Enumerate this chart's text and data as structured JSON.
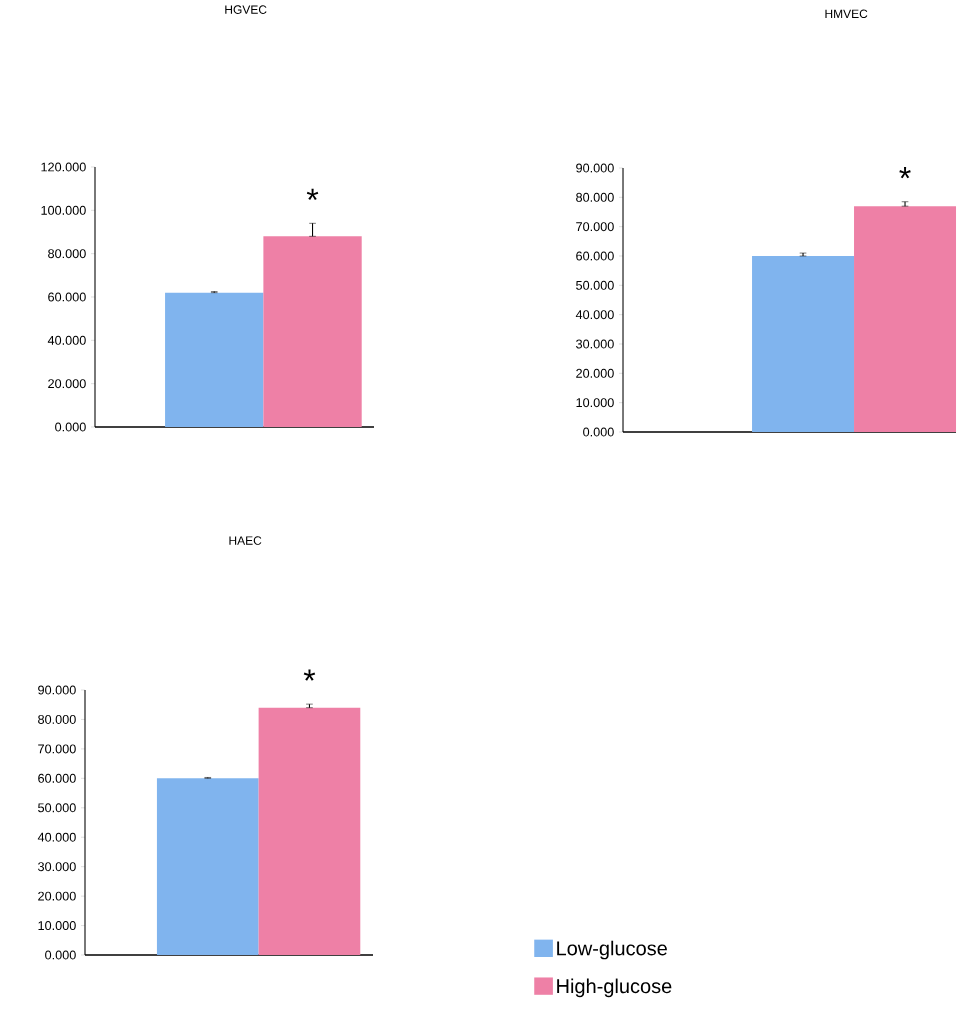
{
  "chart_data": [
    {
      "type": "bar",
      "title": "HGVEC",
      "categories": [
        null
      ],
      "series": [
        {
          "color": "#80b4ee",
          "values": [
            62
          ],
          "errors": [
            [
              62,
              62.5
            ]
          ]
        },
        {
          "color": "#ee80a6",
          "values": [
            88
          ],
          "errors": [
            [
              88,
              94
            ]
          ]
        }
      ],
      "ylim": [
        0,
        120
      ],
      "yticks": [
        {
          "value": 0,
          "label": "0.000"
        },
        {
          "value": 20,
          "label": "20.000"
        },
        {
          "value": 40,
          "label": "40.000"
        },
        {
          "value": 60,
          "label": "60.000"
        },
        {
          "value": 80,
          "label": "80.000"
        },
        {
          "value": 100,
          "label": "100.000"
        },
        {
          "value": 120,
          "label": "120.000"
        }
      ],
      "annotations": [
        "*"
      ]
    },
    {
      "type": "bar",
      "title": "HMVEC",
      "categories": [
        null
      ],
      "series": [
        {
          "color": "#80b4ee",
          "values": [
            60
          ],
          "errors": [
            [
              60,
              61
            ]
          ]
        },
        {
          "color": "#ee80a6",
          "values": [
            77
          ],
          "errors": [
            [
              77,
              78.5
            ]
          ]
        }
      ],
      "ylim": [
        0,
        90
      ],
      "yticks": [
        {
          "value": 0,
          "label": "0.000"
        },
        {
          "value": 10,
          "label": "10.000"
        },
        {
          "value": 20,
          "label": "20.000"
        },
        {
          "value": 30,
          "label": "30.000"
        },
        {
          "value": 40,
          "label": "40.000"
        },
        {
          "value": 50,
          "label": "50.000"
        },
        {
          "value": 60,
          "label": "60.000"
        },
        {
          "value": 70,
          "label": "70.000"
        },
        {
          "value": 80,
          "label": "80.000"
        },
        {
          "value": 90,
          "label": "90.000"
        }
      ],
      "annotations": [
        "*"
      ]
    },
    {
      "type": "bar",
      "title": "HAEC",
      "categories": [
        null
      ],
      "series": [
        {
          "name": "Low-glucose",
          "color": "#80b4ee",
          "values": [
            60
          ],
          "errors": [
            [
              60,
              60.3
            ]
          ]
        },
        {
          "name": "High-glucose",
          "color": "#ee80a6",
          "values": [
            84
          ],
          "errors": [
            [
              84,
              85.2
            ]
          ]
        }
      ],
      "ylim": [
        0,
        90
      ],
      "yticks": [
        {
          "value": 0,
          "label": "0.000"
        },
        {
          "value": 10,
          "label": "10.000"
        },
        {
          "value": 20,
          "label": "20.000"
        },
        {
          "value": 30,
          "label": "30.000"
        },
        {
          "value": 40,
          "label": "40.000"
        },
        {
          "value": 50,
          "label": "50.000"
        },
        {
          "value": 60,
          "label": "60.000"
        },
        {
          "value": 70,
          "label": "70.000"
        },
        {
          "value": 80,
          "label": "80.000"
        },
        {
          "value": 90,
          "label": "90.000"
        }
      ],
      "legend": "bottom right",
      "annotations": [
        "*"
      ]
    }
  ]
}
